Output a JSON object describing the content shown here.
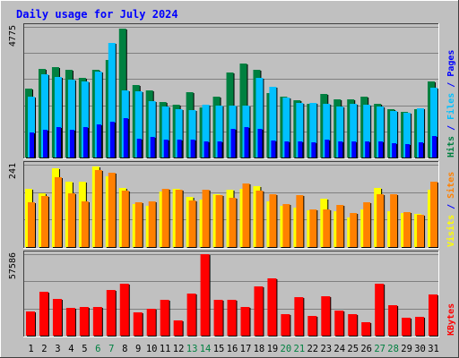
{
  "chart_data": [
    {
      "type": "bar",
      "title": "Daily usage for July 2024",
      "panel": "hits-files-pages",
      "ymax_label": "4775",
      "ylim": [
        0,
        4775
      ],
      "series": [
        {
          "name": "Hits",
          "color": "#008040",
          "values": [
            2510,
            3230,
            3300,
            3220,
            2910,
            3220,
            3560,
            4700,
            2640,
            2460,
            2030,
            1920,
            2380,
            1830,
            2230,
            3100,
            3420,
            3200,
            2370,
            2210,
            2100,
            1970,
            2330,
            2120,
            2110,
            2210,
            1950,
            1770,
            1660,
            1760,
            2790
          ]
        },
        {
          "name": "Files",
          "color": "#00c0ff",
          "values": [
            2210,
            3050,
            2950,
            2860,
            2790,
            3130,
            4200,
            2460,
            2410,
            2050,
            1860,
            1760,
            1730,
            1930,
            1900,
            1890,
            1900,
            2910,
            2590,
            2180,
            1990,
            2010,
            1970,
            1870,
            1960,
            1920,
            1860,
            1700,
            1630,
            1790,
            2550
          ]
        },
        {
          "name": "Pages",
          "color": "#0000ff",
          "values": [
            900,
            1000,
            1100,
            1030,
            1100,
            1200,
            1300,
            1430,
            700,
            750,
            650,
            650,
            650,
            600,
            600,
            1040,
            1120,
            1040,
            620,
            600,
            600,
            560,
            650,
            600,
            600,
            600,
            600,
            520,
            480,
            560,
            780
          ]
        }
      ],
      "ylabels": [
        "Pages",
        "Files",
        "Hits"
      ]
    },
    {
      "type": "bar",
      "panel": "visits-sites",
      "ymax_label": "241",
      "ylim": [
        0,
        241
      ],
      "series": [
        {
          "name": "Visits",
          "color": "#ffff00",
          "values": [
            171,
            156,
            231,
            191,
            190,
            235,
            208,
            173,
            126,
            120,
            162,
            170,
            146,
            140,
            155,
            168,
            169,
            179,
            134,
            120,
            114,
            107,
            141,
            105,
            87,
            109,
            172,
            104,
            99,
            96,
            168
          ]
        },
        {
          "name": "Sites",
          "color": "#ff8000",
          "values": [
            132,
            149,
            204,
            157,
            134,
            225,
            218,
            165,
            130,
            133,
            170,
            168,
            135,
            168,
            151,
            144,
            185,
            164,
            154,
            127,
            151,
            109,
            109,
            123,
            100,
            132,
            155,
            154,
            101,
            94,
            191
          ]
        }
      ],
      "ylabels": [
        "Sites",
        "Visits"
      ]
    },
    {
      "type": "bar",
      "panel": "kbytes",
      "ymax_label": "57586",
      "ylim": [
        0,
        57586
      ],
      "series": [
        {
          "name": "KBytes",
          "color": "#ff0000",
          "values": [
            17000,
            31000,
            26000,
            19500,
            20000,
            20500,
            32000,
            37000,
            16500,
            19000,
            25000,
            10500,
            30000,
            57586,
            25500,
            25500,
            20000,
            34500,
            40500,
            15500,
            27000,
            14000,
            28000,
            17500,
            15500,
            9500,
            36500,
            21500,
            12500,
            13000,
            29000
          ]
        }
      ],
      "ylabels": [
        "KBytes"
      ]
    }
  ],
  "x_labels": [
    "1",
    "2",
    "3",
    "4",
    "5",
    "6",
    "7",
    "8",
    "9",
    "10",
    "11",
    "12",
    "13",
    "14",
    "15",
    "16",
    "17",
    "18",
    "19",
    "20",
    "21",
    "22",
    "23",
    "24",
    "25",
    "26",
    "27",
    "28",
    "29",
    "30",
    "31"
  ],
  "weekend_days": [
    6,
    7,
    13,
    14,
    20,
    21,
    27,
    28
  ],
  "colors": {
    "title": "#0000ff",
    "weekday_label": "#000000",
    "weekend_label": "#008040",
    "plot_bg": "#c0c0c0",
    "grid": "#808080",
    "separator": "#0000ff"
  }
}
